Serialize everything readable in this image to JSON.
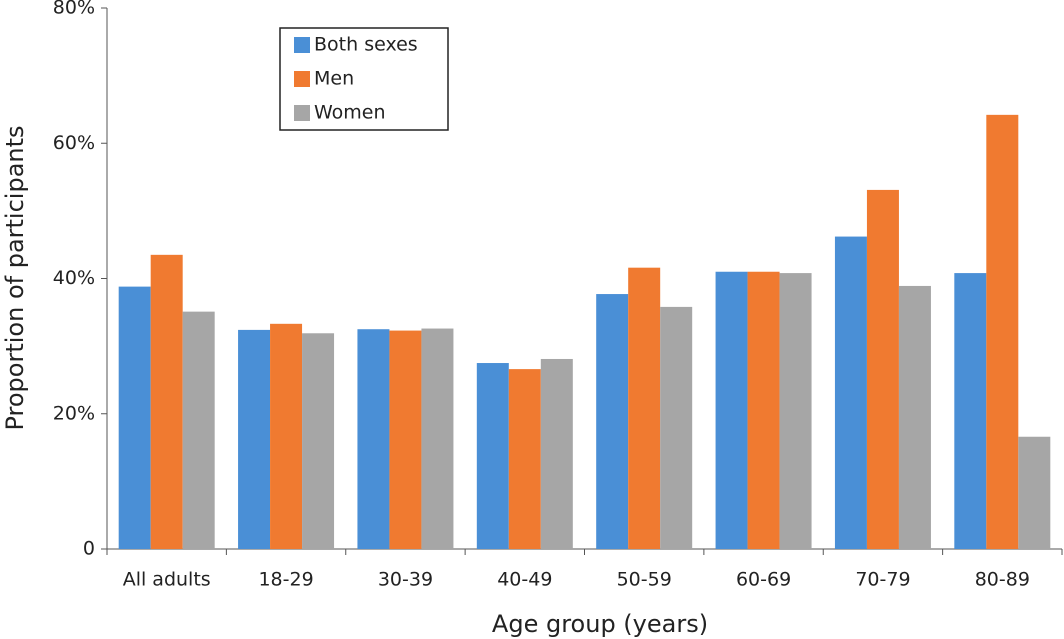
{
  "chart_data": {
    "type": "bar",
    "x_label": "Age group (years)",
    "y_label": "Proportion of participants",
    "categories": [
      "All adults",
      "18-29",
      "30-39",
      "40-49",
      "50-59",
      "60-69",
      "70-79",
      "80-89"
    ],
    "series": [
      {
        "name": "Both sexes",
        "color": "#4a8fd6",
        "values": [
          38.8,
          32.4,
          32.5,
          27.5,
          37.7,
          41.0,
          46.2,
          40.8
        ]
      },
      {
        "name": "Men",
        "color": "#f07a30",
        "values": [
          43.5,
          33.3,
          32.3,
          26.6,
          41.6,
          41.0,
          53.1,
          64.2
        ]
      },
      {
        "name": "Women",
        "color": "#a6a6a6",
        "values": [
          35.1,
          31.9,
          32.6,
          28.1,
          35.8,
          40.8,
          38.9,
          16.6
        ]
      }
    ],
    "ylim": [
      0,
      80
    ],
    "yticks": [
      0,
      {
        "value": 20,
        "label": "20%"
      },
      {
        "value": 40,
        "label": "40%"
      },
      {
        "value": 60,
        "label": "60%"
      },
      {
        "value": 80,
        "label": "80%"
      }
    ],
    "legend": "upper-left",
    "grid": false
  }
}
